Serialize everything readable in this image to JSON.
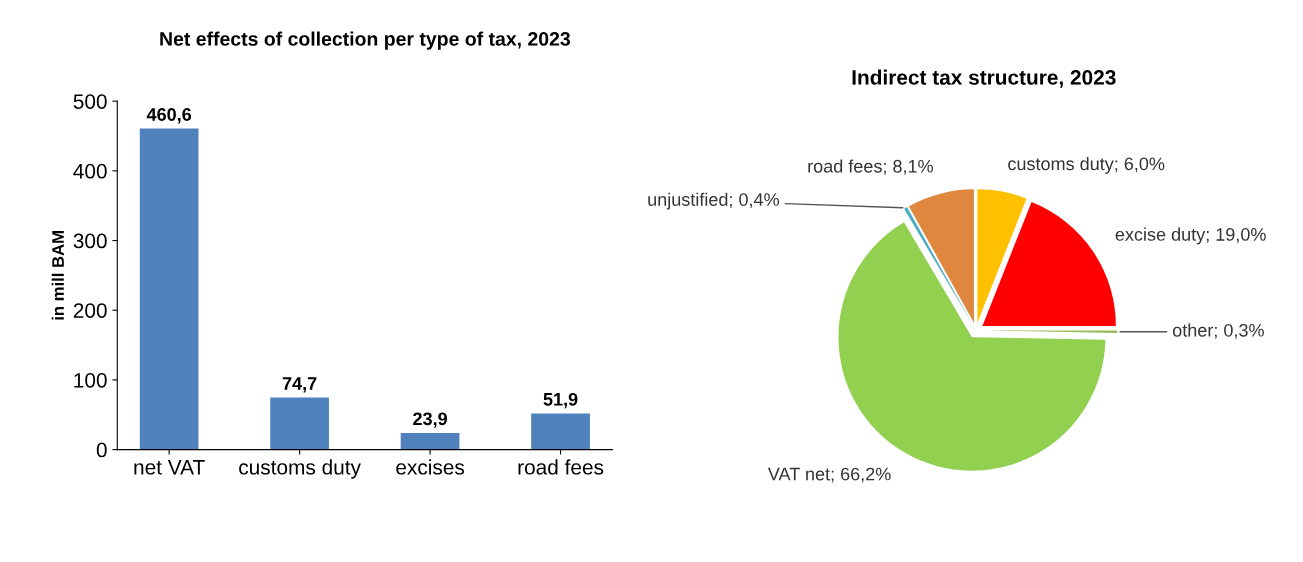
{
  "chart_data": [
    {
      "type": "bar",
      "title": "Net effects of collection per type of tax, 2023",
      "ylabel": "in mill BAM",
      "categories": [
        "net VAT",
        "customs duty",
        "excises",
        "road fees"
      ],
      "values": [
        460.6,
        74.7,
        23.9,
        51.9
      ],
      "value_labels": [
        "460,6",
        "74,7",
        "23,9",
        "51,9"
      ],
      "color": "#4f81bd",
      "ylim": [
        0,
        500
      ],
      "yticks": [
        0,
        100,
        200,
        300,
        400,
        500
      ],
      "grid": false,
      "legend": false
    },
    {
      "type": "pie",
      "title": "Indirect tax structure, 2023",
      "categories": [
        "customs duty",
        "excise duty",
        "other",
        "VAT net",
        "unjustified",
        "road fees"
      ],
      "values": [
        6.0,
        19.0,
        0.3,
        66.2,
        0.4,
        8.1
      ],
      "value_labels": [
        "6,0%",
        "19,0%",
        "0,3%",
        "66,2%",
        "0,4%",
        "8,1%"
      ],
      "colors": [
        "#ffc000",
        "#ff0000",
        "#9bbb59",
        "#92d050",
        "#4bacc6",
        "#e0873f"
      ],
      "legend": false
    }
  ]
}
